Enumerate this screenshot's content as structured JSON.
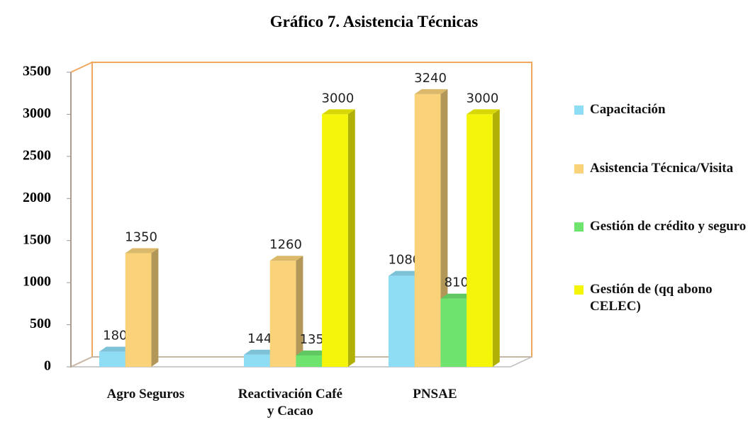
{
  "chart_data": {
    "type": "bar3d",
    "title": "Gráfico 7. Asistencia Técnicas",
    "categories": [
      "Agro Seguros",
      "Reactivación Café y Cacao",
      "PNSAE"
    ],
    "series": [
      {
        "name": "Capacitación",
        "color": "#8fdcf5",
        "values": [
          180,
          144,
          1080
        ]
      },
      {
        "name": "Asistencia Técnica/Visita",
        "color": "#f9d27a",
        "values": [
          1350,
          1260,
          3240
        ]
      },
      {
        "name": "Gestión de crédito y seguro",
        "color": "#6ee36e",
        "values": [
          null,
          135,
          810
        ]
      },
      {
        "name": "Gestión de (qq abono CELEC)",
        "color": "#f5f50a",
        "values": [
          null,
          3000,
          3000
        ]
      }
    ],
    "ylim": [
      0,
      3500
    ],
    "yticks": [
      0,
      500,
      1000,
      1500,
      2000,
      2500,
      3000,
      3500
    ],
    "grid": false,
    "legend": "right"
  }
}
